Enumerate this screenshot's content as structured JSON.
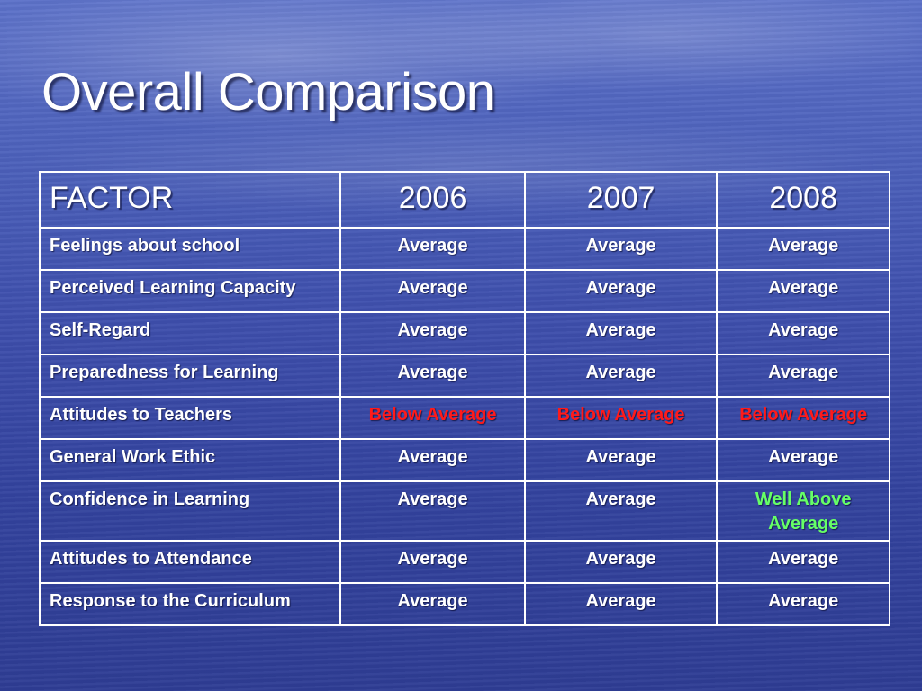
{
  "slide": {
    "title": "Overall Comparison"
  },
  "table": {
    "headers": [
      "FACTOR",
      "2006",
      "2007",
      "2008"
    ],
    "rows": [
      {
        "factor": "Feelings about school",
        "values": [
          "Average",
          "Average",
          "Average"
        ]
      },
      {
        "factor": "Perceived Learning Capacity",
        "values": [
          "Average",
          "Average",
          "Average"
        ]
      },
      {
        "factor": "Self-Regard",
        "values": [
          "Average",
          "Average",
          "Average"
        ]
      },
      {
        "factor": "Preparedness for Learning",
        "values": [
          "Average",
          "Average",
          "Average"
        ]
      },
      {
        "factor": "Attitudes to Teachers",
        "values": [
          "Below Average",
          "Below Average",
          "Below Average"
        ]
      },
      {
        "factor": "General Work Ethic",
        "values": [
          "Average",
          "Average",
          "Average"
        ]
      },
      {
        "factor": "Confidence in Learning",
        "values": [
          "Average",
          "Average",
          "Well Above Average"
        ]
      },
      {
        "factor": "Attitudes to Attendance",
        "values": [
          "Average",
          "Average",
          "Average"
        ]
      },
      {
        "factor": "Response to the Curriculum",
        "values": [
          "Average",
          "Average",
          "Average"
        ]
      }
    ]
  },
  "colors": {
    "text": "#ffffff",
    "below_average": "#ff1a1a",
    "well_above_average": "#66ff66",
    "background": "#3f50ad"
  }
}
